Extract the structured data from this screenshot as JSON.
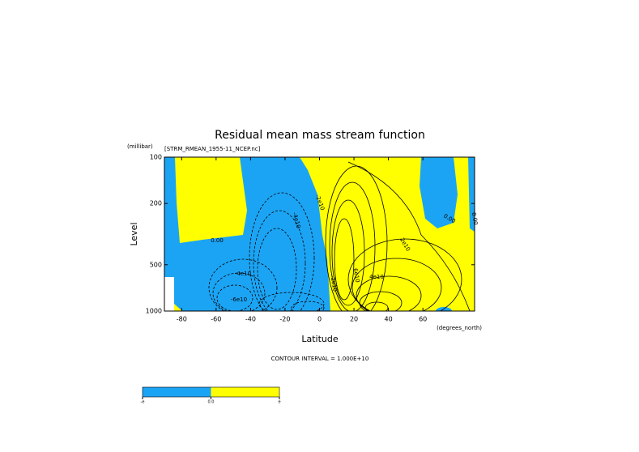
{
  "chart_data": {
    "type": "contour",
    "title": "Residual mean mass stream function",
    "subtitle": "[STRM_RMEAN_1955-11_NCEP.nc]",
    "y_unit": "(millibar)",
    "x_unit": "(degrees_north)",
    "ylabel": "Level",
    "xlabel": "Latitude",
    "note": "CONTOUR INTERVAL = 1.000E+10",
    "xlim": [
      -90,
      90
    ],
    "xticks": [
      -80,
      -60,
      -40,
      -20,
      0,
      20,
      40,
      60
    ],
    "ylim": [
      1000,
      100
    ],
    "yticks": [
      100,
      200,
      500,
      1000
    ],
    "log_y": true,
    "fill_colors": [
      "#1ca4f4",
      "#ffff00"
    ],
    "contour_labels": [
      "0.00",
      "-4e10",
      "-2e10",
      "-4e10",
      "-6e10",
      "2e10",
      "4e10",
      "6e10",
      "-2e10",
      "0.00",
      "0.00"
    ],
    "colorbar_labels": [
      "-e",
      "0.0",
      "e"
    ]
  }
}
